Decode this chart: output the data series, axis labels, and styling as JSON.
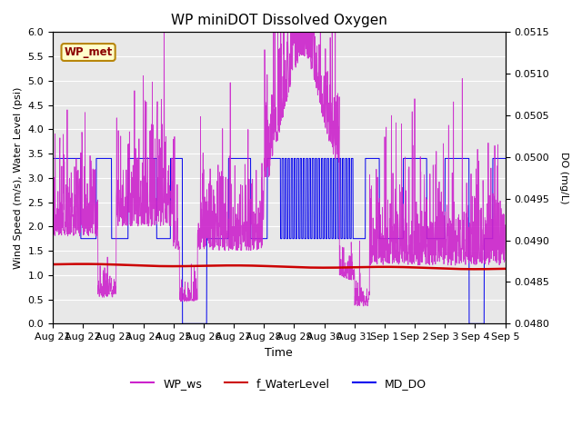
{
  "title": "WP miniDOT Dissolved Oxygen",
  "xlabel": "Time",
  "ylabel_left": "Wind Speed (m/s), Water Level (psi)",
  "ylabel_right": "DO (mg/L)",
  "ylim_left": [
    0.0,
    6.0
  ],
  "ylim_right": [
    0.048,
    0.0515
  ],
  "yticks_left": [
    0.0,
    0.5,
    1.0,
    1.5,
    2.0,
    2.5,
    3.0,
    3.5,
    4.0,
    4.5,
    5.0,
    5.5,
    6.0
  ],
  "yticks_right": [
    0.048,
    0.0485,
    0.049,
    0.0495,
    0.05,
    0.0505,
    0.051,
    0.0515
  ],
  "xtick_labels": [
    "Aug 21",
    "Aug 22",
    "Aug 23",
    "Aug 24",
    "Aug 25",
    "Aug 26",
    "Aug 27",
    "Aug 28",
    "Aug 29",
    "Aug 30",
    "Aug 31",
    "Sep 1",
    "Sep 2",
    "Sep 3",
    "Sep 4",
    "Sep 5"
  ],
  "annotation_text": "WP_met",
  "bg_color": "#e8e8e8",
  "wp_ws_color": "#cc22cc",
  "f_waterlevel_color": "#cc0000",
  "md_do_color": "#0000ee",
  "n_days": 15,
  "seed": 42
}
